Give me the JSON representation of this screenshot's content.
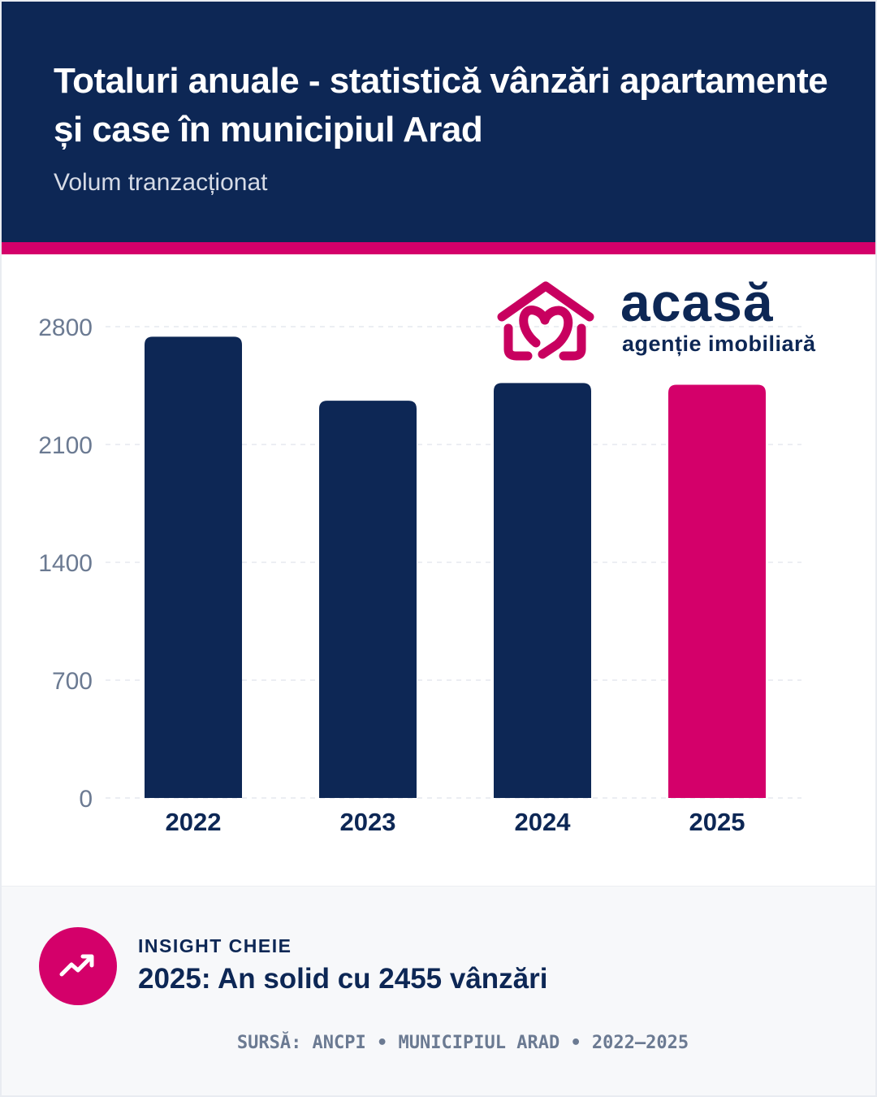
{
  "header": {
    "title": "Totaluri anuale - statistică vânzări apartamente și case în municipiul Arad",
    "subtitle": "Volum tranzacționat"
  },
  "logo": {
    "word": "acasă",
    "tagline": "agenție imobiliară"
  },
  "colors": {
    "navy": "#0d2755",
    "accent": "#d4006a"
  },
  "chart_data": {
    "type": "bar",
    "categories": [
      "2022",
      "2023",
      "2024",
      "2025"
    ],
    "values": [
      2740,
      2360,
      2465,
      2455
    ],
    "bar_colors": [
      "#0d2755",
      "#0d2755",
      "#0d2755",
      "#d4006a"
    ],
    "yticks": [
      0,
      700,
      1400,
      2100,
      2800
    ],
    "ylim": [
      0,
      2800
    ],
    "grid": true,
    "title": "",
    "xlabel": "",
    "ylabel": ""
  },
  "insight": {
    "icon": "trending-up-icon",
    "label": "INSIGHT CHEIE",
    "text": "2025: An solid cu 2455 vânzări"
  },
  "source": "SURSĂ: ANCPI • MUNICIPIUL ARAD • 2022–2025"
}
